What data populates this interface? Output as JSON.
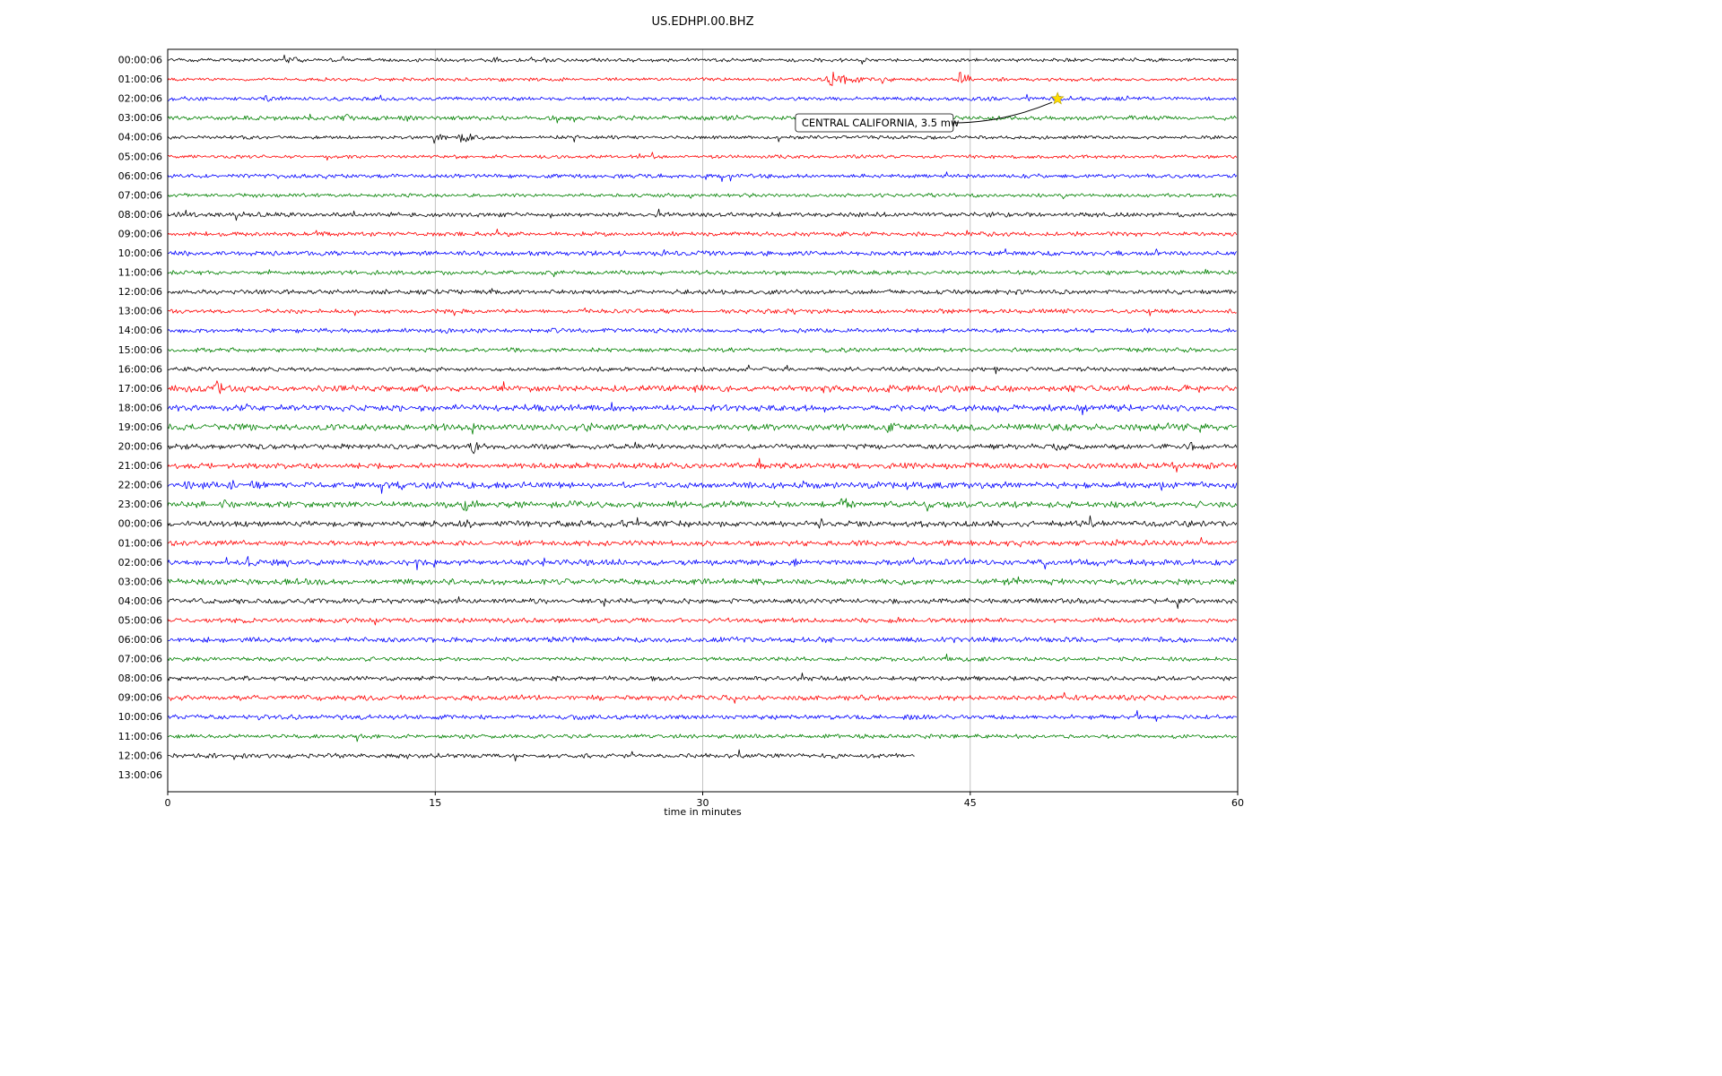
{
  "chart_data": {
    "type": "line",
    "subtype": "seismogram-helicorder",
    "title": "US.EDHPI.00.BHZ",
    "xlabel": "time in minutes",
    "ylabel": "",
    "x_range": [
      0,
      60
    ],
    "x_ticks": [
      0,
      15,
      30,
      45,
      60
    ],
    "grid": true,
    "colors": {
      "black": "#000000",
      "red": "#ff0000",
      "blue": "#0000ff",
      "green": "#008000",
      "grid": "#b4b4b4",
      "star": "#ffdd00",
      "star_edge": "#b8a000"
    },
    "annotation": {
      "text": "CENTRAL CALIFORNIA, 3.5 mw",
      "star_row": 2,
      "star_minute": 49.9,
      "box_minute": 35.2
    },
    "rows": [
      {
        "label": "00:00:06",
        "color": "black",
        "end": 60,
        "noise": 1.2,
        "events": [
          {
            "t": 6.3,
            "amp": 6,
            "dur": 1.2
          },
          {
            "t": 18.2,
            "amp": 5,
            "dur": 0.6
          },
          {
            "t": 19.8,
            "amp": 5,
            "dur": 0.5
          },
          {
            "t": 21.0,
            "amp": 6,
            "dur": 0.4
          }
        ]
      },
      {
        "label": "01:00:06",
        "color": "red",
        "end": 60,
        "noise": 1.2,
        "events": [
          {
            "t": 36.8,
            "amp": 8,
            "dur": 2.0
          },
          {
            "t": 40.0,
            "amp": 4,
            "dur": 0.4
          },
          {
            "t": 44.3,
            "amp": 10,
            "dur": 0.6
          }
        ]
      },
      {
        "label": "02:00:06",
        "color": "blue",
        "end": 60,
        "noise": 1.3,
        "events": [
          {
            "t": 5.4,
            "amp": 7,
            "dur": 0.4
          },
          {
            "t": 49.9,
            "amp": 4,
            "dur": 0.8
          }
        ]
      },
      {
        "label": "03:00:06",
        "color": "green",
        "end": 60,
        "noise": 1.5,
        "events": [
          {
            "t": 9.8,
            "amp": 7,
            "dur": 0.4
          },
          {
            "t": 18.7,
            "amp": 6,
            "dur": 0.4
          }
        ]
      },
      {
        "label": "04:00:06",
        "color": "black",
        "end": 60,
        "noise": 1.2,
        "events": [
          {
            "t": 14.8,
            "amp": 5,
            "dur": 1.0
          },
          {
            "t": 16.2,
            "amp": 8,
            "dur": 1.2
          }
        ]
      },
      {
        "label": "05:00:06",
        "color": "red",
        "end": 60,
        "noise": 1.2,
        "events": []
      },
      {
        "label": "06:00:06",
        "color": "blue",
        "end": 60,
        "noise": 1.4,
        "events": []
      },
      {
        "label": "07:00:06",
        "color": "green",
        "end": 60,
        "noise": 1.3,
        "events": []
      },
      {
        "label": "08:00:06",
        "color": "black",
        "end": 60,
        "noise": 1.6,
        "events": []
      },
      {
        "label": "09:00:06",
        "color": "red",
        "end": 60,
        "noise": 1.5,
        "events": []
      },
      {
        "label": "10:00:06",
        "color": "blue",
        "end": 60,
        "noise": 1.6,
        "events": []
      },
      {
        "label": "11:00:06",
        "color": "green",
        "end": 60,
        "noise": 1.5,
        "events": []
      },
      {
        "label": "12:00:06",
        "color": "black",
        "end": 60,
        "noise": 1.6,
        "events": []
      },
      {
        "label": "13:00:06",
        "color": "red",
        "end": 60,
        "noise": 1.5,
        "events": []
      },
      {
        "label": "14:00:06",
        "color": "blue",
        "end": 60,
        "noise": 1.5,
        "events": []
      },
      {
        "label": "15:00:06",
        "color": "green",
        "end": 60,
        "noise": 1.5,
        "events": []
      },
      {
        "label": "16:00:06",
        "color": "black",
        "end": 60,
        "noise": 1.5,
        "events": [
          {
            "t": 28.8,
            "amp": 3,
            "dur": 0.4
          }
        ]
      },
      {
        "label": "17:00:06",
        "color": "red",
        "end": 60,
        "noise": 2.2,
        "events": [
          {
            "t": 2.5,
            "amp": 7,
            "dur": 1.0
          },
          {
            "t": 40.2,
            "amp": 5,
            "dur": 0.6
          },
          {
            "t": 43.2,
            "amp": 5,
            "dur": 0.4
          },
          {
            "t": 53.2,
            "amp": 4,
            "dur": 0.5
          },
          {
            "t": 56.8,
            "amp": 4,
            "dur": 0.6
          }
        ]
      },
      {
        "label": "18:00:06",
        "color": "blue",
        "end": 60,
        "noise": 2.2,
        "events": [
          {
            "t": 4.2,
            "amp": 6,
            "dur": 0.8
          },
          {
            "t": 36.6,
            "amp": 4,
            "dur": 0.4
          },
          {
            "t": 46.2,
            "amp": 4,
            "dur": 0.4
          },
          {
            "t": 52.8,
            "amp": 6,
            "dur": 0.6
          },
          {
            "t": 56.5,
            "amp": 4,
            "dur": 0.4
          }
        ]
      },
      {
        "label": "19:00:06",
        "color": "green",
        "end": 60,
        "noise": 2.2,
        "events": [
          {
            "t": 3.8,
            "amp": 6,
            "dur": 0.6
          },
          {
            "t": 16.9,
            "amp": 10,
            "dur": 0.35
          },
          {
            "t": 23.4,
            "amp": 6,
            "dur": 0.5
          },
          {
            "t": 40.3,
            "amp": 8,
            "dur": 0.5
          },
          {
            "t": 44.0,
            "amp": 4,
            "dur": 0.35
          },
          {
            "t": 53.7,
            "amp": 5,
            "dur": 0.4
          },
          {
            "t": 57.8,
            "amp": 7,
            "dur": 0.5
          }
        ]
      },
      {
        "label": "20:00:06",
        "color": "black",
        "end": 60,
        "noise": 1.8,
        "events": [
          {
            "t": 16.9,
            "amp": 12,
            "dur": 0.6
          },
          {
            "t": 49.5,
            "amp": 5,
            "dur": 0.8
          },
          {
            "t": 57.3,
            "amp": 7,
            "dur": 0.7
          }
        ]
      },
      {
        "label": "21:00:06",
        "color": "red",
        "end": 60,
        "noise": 2.0,
        "events": [
          {
            "t": 55.8,
            "amp": 7,
            "dur": 0.4
          }
        ]
      },
      {
        "label": "22:00:06",
        "color": "blue",
        "end": 60,
        "noise": 2.2,
        "events": [
          {
            "t": 0.8,
            "amp": 7,
            "dur": 0.8
          },
          {
            "t": 3.4,
            "amp": 5,
            "dur": 0.6
          },
          {
            "t": 32.4,
            "amp": 6,
            "dur": 0.4
          },
          {
            "t": 35.5,
            "amp": 4,
            "dur": 0.4
          }
        ]
      },
      {
        "label": "23:00:06",
        "color": "green",
        "end": 60,
        "noise": 2.2,
        "events": [
          {
            "t": 2.9,
            "amp": 7,
            "dur": 0.6
          },
          {
            "t": 16.4,
            "amp": 11,
            "dur": 0.6
          },
          {
            "t": 37.6,
            "amp": 9,
            "dur": 0.9
          },
          {
            "t": 42.5,
            "amp": 4,
            "dur": 0.35
          }
        ]
      },
      {
        "label": "00:00:06",
        "color": "black",
        "end": 60,
        "noise": 2.0,
        "events": [
          {
            "t": 16.6,
            "amp": 7,
            "dur": 0.5
          },
          {
            "t": 24.2,
            "amp": 6,
            "dur": 1.0
          },
          {
            "t": 36.4,
            "amp": 9,
            "dur": 0.4
          }
        ]
      },
      {
        "label": "01:00:06",
        "color": "red",
        "end": 60,
        "noise": 1.8,
        "events": [
          {
            "t": 6.5,
            "amp": 3,
            "dur": 0.4
          }
        ]
      },
      {
        "label": "02:00:06",
        "color": "blue",
        "end": 60,
        "noise": 2.0,
        "events": [
          {
            "t": 4.4,
            "amp": 7,
            "dur": 0.4
          },
          {
            "t": 6.6,
            "amp": 5,
            "dur": 0.6
          },
          {
            "t": 21.0,
            "amp": 4,
            "dur": 0.4
          },
          {
            "t": 25.0,
            "amp": 4,
            "dur": 0.35
          },
          {
            "t": 35.0,
            "amp": 4,
            "dur": 0.4
          },
          {
            "t": 52.0,
            "amp": 3,
            "dur": 0.35
          }
        ]
      },
      {
        "label": "03:00:06",
        "color": "green",
        "end": 60,
        "noise": 2.0,
        "events": [
          {
            "t": 8.5,
            "amp": 4,
            "dur": 0.4
          },
          {
            "t": 47.0,
            "amp": 6,
            "dur": 1.2
          }
        ]
      },
      {
        "label": "04:00:06",
        "color": "black",
        "end": 60,
        "noise": 1.8,
        "events": []
      },
      {
        "label": "05:00:06",
        "color": "red",
        "end": 60,
        "noise": 1.6,
        "events": []
      },
      {
        "label": "06:00:06",
        "color": "blue",
        "end": 60,
        "noise": 1.8,
        "events": []
      },
      {
        "label": "07:00:06",
        "color": "green",
        "end": 60,
        "noise": 1.4,
        "events": []
      },
      {
        "label": "08:00:06",
        "color": "black",
        "end": 60,
        "noise": 1.6,
        "events": []
      },
      {
        "label": "09:00:06",
        "color": "red",
        "end": 60,
        "noise": 1.8,
        "events": []
      },
      {
        "label": "10:00:06",
        "color": "blue",
        "end": 60,
        "noise": 1.6,
        "events": []
      },
      {
        "label": "11:00:06",
        "color": "green",
        "end": 60,
        "noise": 1.4,
        "events": []
      },
      {
        "label": "12:00:06",
        "color": "black",
        "end": 41.9,
        "noise": 1.6,
        "events": []
      },
      {
        "label": "13:00:06",
        "color": "red",
        "end": 0,
        "noise": 0,
        "events": []
      }
    ]
  }
}
